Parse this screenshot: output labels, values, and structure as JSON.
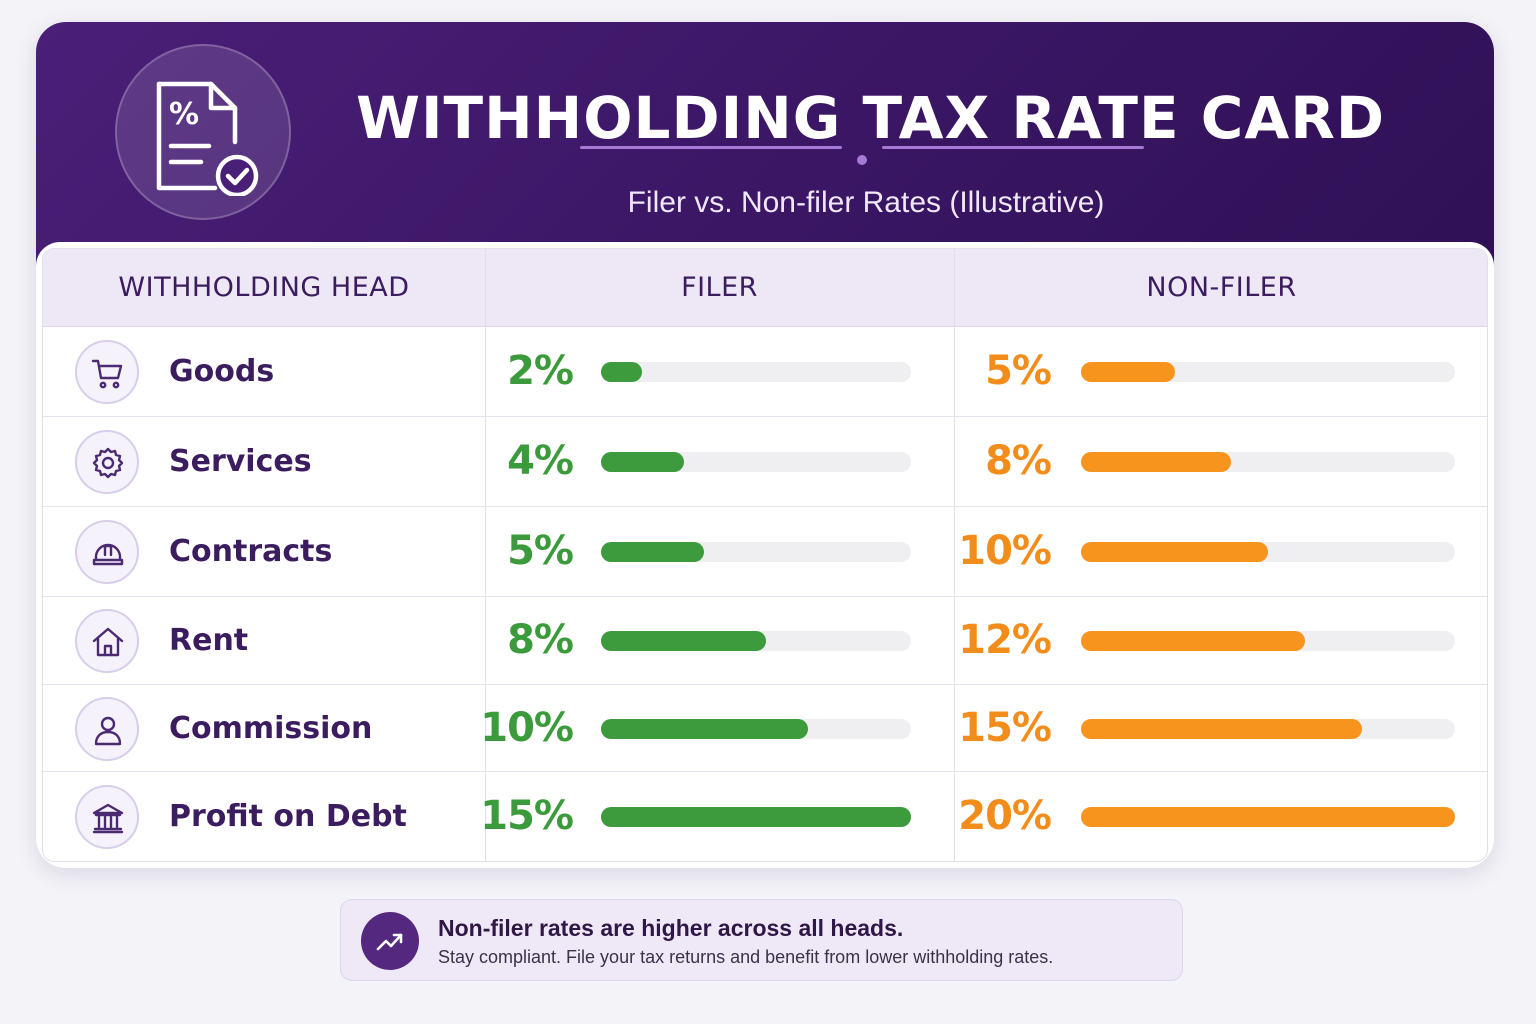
{
  "header": {
    "title": "WITHHOLDING TAX RATE CARD",
    "subtitle": "Filer vs. Non-filer Rates (Illustrative)",
    "logo_icon": "tax-document-check-icon"
  },
  "table": {
    "columns": [
      "WITHHOLDING HEAD",
      "FILER",
      "NON-FILER"
    ]
  },
  "chart_data": {
    "type": "bar",
    "title": "WITHHOLDING TAX RATE CARD",
    "subtitle": "Filer vs. Non-filer Rates (Illustrative)",
    "categories": [
      "Goods",
      "Services",
      "Contracts",
      "Rent",
      "Commission",
      "Profit on Debt"
    ],
    "icons": [
      "cart-icon",
      "gear-icon",
      "hard-hat-icon",
      "house-icon",
      "person-icon",
      "bank-icon"
    ],
    "series": [
      {
        "name": "FILER",
        "color": "#3d9a3d",
        "values": [
          2,
          4,
          5,
          8,
          10,
          15
        ],
        "labels": [
          "2%",
          "4%",
          "5%",
          "8%",
          "10%",
          "15%"
        ]
      },
      {
        "name": "NON-FILER",
        "color": "#f7941d",
        "values": [
          5,
          8,
          10,
          12,
          15,
          20
        ],
        "labels": [
          "5%",
          "8%",
          "10%",
          "12%",
          "15%",
          "20%"
        ]
      }
    ],
    "unit": "%",
    "orientation": "horizontal",
    "grid": false
  },
  "note": {
    "icon": "trending-up-icon",
    "title": "Non-filer rates are higher across all heads.",
    "text": "Stay compliant. File your tax returns and benefit from lower withholding rates."
  }
}
